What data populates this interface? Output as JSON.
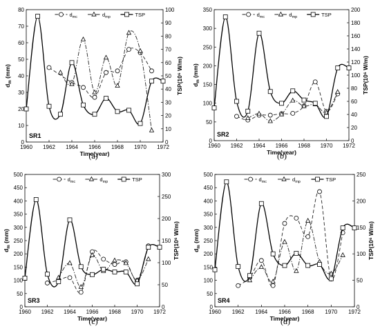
{
  "legend": {
    "dmc": "d",
    "dmc_sub": "mc",
    "dmp": "d",
    "dmp_sub": "mp",
    "tsp": "TSP"
  },
  "axis_text": {
    "xlabel": "Time(year)",
    "ylabel_main": "d",
    "ylabel_sub": "m",
    "ylabel_unit": " (mm)",
    "ylabel_right": "TSP(10⁶ W/m)"
  },
  "chart_data": [
    {
      "type": "line",
      "panel_label": "SR1",
      "caption": "(a)",
      "xlim": [
        1960,
        1972
      ],
      "xticks": [
        1960,
        1962,
        1964,
        1966,
        1968,
        1970,
        1972
      ],
      "ylim": [
        0,
        80
      ],
      "yticks": [
        0,
        10,
        20,
        30,
        40,
        50,
        60,
        70,
        80
      ],
      "y2lim": [
        0,
        100
      ],
      "y2ticks": [
        0,
        10,
        20,
        30,
        40,
        50,
        60,
        70,
        80,
        90,
        100
      ],
      "series": [
        {
          "name": "dmc",
          "axis": "left",
          "x": [
            1962,
            1964,
            1965,
            1966,
            1967,
            1968,
            1969,
            1970,
            1971
          ],
          "y": [
            45,
            36,
            33,
            27,
            42,
            43,
            56,
            54,
            43
          ]
        },
        {
          "name": "dmp",
          "axis": "left",
          "x": [
            1963,
            1964,
            1965,
            1966,
            1967,
            1968,
            1969,
            1970,
            1971
          ],
          "y": [
            42,
            35,
            62,
            30,
            51,
            34,
            66,
            55,
            7
          ]
        },
        {
          "name": "TSP",
          "axis": "right",
          "x": [
            1960,
            1961,
            1962,
            1963,
            1964,
            1965,
            1966,
            1967,
            1968,
            1969,
            1970,
            1971,
            1972
          ],
          "y": [
            25,
            95,
            27,
            21,
            60,
            28,
            21,
            33,
            23,
            24,
            14,
            46,
            46
          ]
        }
      ]
    },
    {
      "type": "line",
      "panel_label": "SR2",
      "caption": "(b)",
      "xlim": [
        1960,
        1972
      ],
      "xticks": [
        1960,
        1962,
        1964,
        1966,
        1968,
        1970,
        1972
      ],
      "ylim": [
        0,
        350
      ],
      "yticks": [
        0,
        50,
        100,
        150,
        200,
        250,
        300,
        350
      ],
      "y2lim": [
        0,
        200
      ],
      "y2ticks": [
        0,
        20,
        40,
        60,
        80,
        100,
        120,
        140,
        160,
        180,
        200
      ],
      "series": [
        {
          "name": "dmc",
          "axis": "left",
          "x": [
            1962,
            1963,
            1964,
            1965,
            1966,
            1967,
            1968,
            1969,
            1970,
            1971
          ],
          "y": [
            65,
            55,
            68,
            68,
            72,
            73,
            93,
            157,
            78,
            125
          ]
        },
        {
          "name": "dmp",
          "axis": "left",
          "x": [
            1963,
            1964,
            1965,
            1966,
            1967,
            1968,
            1969,
            1970,
            1971
          ],
          "y": [
            60,
            72,
            52,
            70,
            107,
            92,
            97,
            75,
            130
          ]
        },
        {
          "name": "TSP",
          "axis": "right",
          "x": [
            1960,
            1961,
            1962,
            1963,
            1964,
            1965,
            1966,
            1967,
            1968,
            1969,
            1970,
            1971,
            1972
          ],
          "y": [
            50,
            189,
            60,
            45,
            164,
            75,
            57,
            76,
            62,
            57,
            37,
            111,
            111
          ]
        }
      ]
    },
    {
      "type": "line",
      "panel_label": "SR3",
      "caption": "(c)",
      "xlim": [
        1960,
        1972
      ],
      "xticks": [
        1960,
        1962,
        1964,
        1966,
        1968,
        1970,
        1972
      ],
      "ylim": [
        0,
        500
      ],
      "yticks": [
        0,
        50,
        100,
        150,
        200,
        250,
        300,
        350,
        400,
        450,
        500
      ],
      "y2lim": [
        0,
        300
      ],
      "y2ticks": [
        0,
        50,
        100,
        150,
        200,
        250,
        300
      ],
      "series": [
        {
          "name": "dmc",
          "axis": "left",
          "x": [
            1962,
            1963,
            1964,
            1965,
            1966,
            1967,
            1968,
            1969,
            1970,
            1971
          ],
          "y": [
            90,
            100,
            110,
            55,
            208,
            180,
            160,
            170,
            100,
            230
          ]
        },
        {
          "name": "dmp",
          "axis": "left",
          "x": [
            1963,
            1964,
            1965,
            1966,
            1967,
            1968,
            1969,
            1970,
            1971
          ],
          "y": [
            110,
            165,
            75,
            195,
            135,
            175,
            165,
            100,
            180
          ]
        },
        {
          "name": "TSP",
          "axis": "right",
          "x": [
            1960,
            1961,
            1962,
            1963,
            1964,
            1965,
            1966,
            1967,
            1968,
            1969,
            1970,
            1971,
            1972
          ],
          "y": [
            65,
            243,
            74,
            57,
            197,
            91,
            73,
            85,
            79,
            79,
            52,
            135,
            135
          ]
        }
      ]
    },
    {
      "type": "line",
      "panel_label": "SR4",
      "caption": "(d)",
      "xlim": [
        1960,
        1972
      ],
      "xticks": [
        1960,
        1962,
        1964,
        1966,
        1968,
        1970,
        1972
      ],
      "ylim": [
        0,
        500
      ],
      "yticks": [
        0,
        50,
        100,
        150,
        200,
        250,
        300,
        350,
        400,
        450,
        500
      ],
      "y2lim": [
        0,
        250
      ],
      "y2ticks": [
        0,
        50,
        100,
        150,
        200,
        250
      ],
      "series": [
        {
          "name": "dmc",
          "axis": "left",
          "x": [
            1962,
            1963,
            1964,
            1965,
            1966,
            1967,
            1968,
            1969,
            1970,
            1971
          ],
          "y": [
            80,
            110,
            175,
            80,
            315,
            335,
            265,
            435,
            105,
            280
          ]
        },
        {
          "name": "dmp",
          "axis": "left",
          "x": [
            1963,
            1964,
            1965,
            1966,
            1967,
            1968,
            1969,
            1970,
            1971
          ],
          "y": [
            100,
            150,
            95,
            245,
            135,
            325,
            170,
            125,
            195
          ]
        },
        {
          "name": "TSP",
          "axis": "right",
          "x": [
            1960,
            1961,
            1962,
            1963,
            1964,
            1965,
            1966,
            1967,
            1968,
            1969,
            1970,
            1971,
            1972
          ],
          "y": [
            70,
            236,
            76,
            59,
            195,
            100,
            78,
            101,
            78,
            80,
            53,
            149,
            149
          ]
        }
      ]
    }
  ]
}
